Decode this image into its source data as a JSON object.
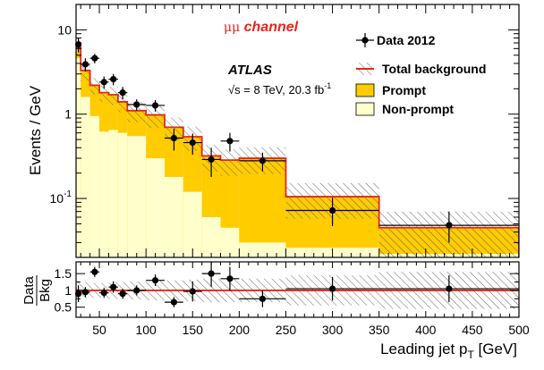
{
  "chart_data": {
    "type": "bar",
    "annotations": {
      "channel_symbol": "μμ",
      "channel_word": "channel",
      "experiment": "ATLAS",
      "energy": "√s = 8 TeV, 20.3 fb",
      "energy_exp": "-1"
    },
    "xlabel": "Leading jet p",
    "xlabel_sub": "T",
    "xlabel_unit": " [GeV]",
    "ylabel": "Events / GeV",
    "ratio_ylabel_top": "Data",
    "ratio_ylabel_bottom": "Bkg",
    "xlim": [
      25,
      500
    ],
    "ylim": [
      0.02,
      20
    ],
    "ratio_ylim": [
      0.2,
      1.85
    ],
    "log_y": true,
    "x_ticks": [
      "50",
      "100",
      "150",
      "200",
      "250",
      "300",
      "350",
      "400",
      "450",
      "500"
    ],
    "y_ticks": [
      "10",
      "1",
      "10"
    ],
    "y_tick_exp": [
      "",
      "",
      "-1"
    ],
    "ratio_ticks": [
      "1.5",
      "1",
      "0.5"
    ],
    "legend": {
      "placement": "top-right",
      "entries": [
        "Data 2012",
        "Total background",
        "Prompt",
        "Non-prompt"
      ]
    },
    "bin_edges": [
      25,
      30,
      40,
      50,
      60,
      70,
      80,
      100,
      120,
      140,
      160,
      180,
      200,
      250,
      350,
      500
    ],
    "series": [
      {
        "name": "Non-prompt",
        "values": [
          4.6,
          1.6,
          0.95,
          0.62,
          0.65,
          0.6,
          0.55,
          0.3,
          0.18,
          0.12,
          0.06,
          0.045,
          0.03,
          0.026,
          0.022
        ]
      },
      {
        "name": "Prompt",
        "values": [
          1.6,
          1.7,
          1.25,
          1.18,
          1.05,
          0.8,
          0.55,
          0.68,
          0.52,
          0.42,
          0.26,
          0.24,
          0.27,
          0.079,
          0.023
        ]
      },
      {
        "name": "Total background",
        "values": [
          6.2,
          3.3,
          2.2,
          1.8,
          1.7,
          1.4,
          1.1,
          0.98,
          0.7,
          0.54,
          0.32,
          0.285,
          0.3,
          0.105,
          0.045
        ]
      },
      {
        "name": "Data 2012",
        "x": [
          27.5,
          35,
          45,
          55,
          65,
          75,
          90,
          110,
          130,
          150,
          170,
          190,
          225,
          300,
          425
        ],
        "values": [
          6.7,
          3.9,
          4.6,
          2.4,
          2.6,
          1.8,
          1.3,
          1.27,
          0.52,
          0.46,
          0.29,
          0.48,
          0.28,
          0.072,
          0.048
        ],
        "err_low": [
          1.3,
          0.7,
          0.6,
          0.4,
          0.4,
          0.3,
          0.2,
          0.2,
          0.15,
          0.13,
          0.11,
          0.12,
          0.07,
          0.025,
          0.018
        ],
        "err_high": [
          1.3,
          0.7,
          0.6,
          0.4,
          0.4,
          0.3,
          0.2,
          0.2,
          0.15,
          0.13,
          0.11,
          0.12,
          0.07,
          0.03,
          0.022
        ]
      }
    ],
    "ratio": {
      "values": [
        0.9,
        0.95,
        1.55,
        0.93,
        1.1,
        0.9,
        1.0,
        1.3,
        0.65,
        0.97,
        1.5,
        1.35,
        0.75,
        1.05,
        1.05
      ],
      "err_low": [
        0.25,
        0.15,
        0.15,
        0.15,
        0.17,
        0.15,
        0.15,
        0.17,
        0.15,
        0.3,
        0.4,
        0.35,
        0.25,
        0.35,
        0.4
      ],
      "err_high": [
        0.25,
        0.15,
        0.15,
        0.15,
        0.17,
        0.15,
        0.15,
        0.17,
        0.15,
        0.3,
        0.4,
        0.35,
        0.25,
        0.35,
        0.4
      ],
      "band": [
        0.25,
        0.25,
        0.22,
        0.22,
        0.25,
        0.25,
        0.27,
        0.3,
        0.3,
        0.32,
        0.35,
        0.35,
        0.35,
        0.45,
        0.55
      ]
    },
    "background_uncertainty": [
      0.25,
      0.25,
      0.22,
      0.22,
      0.25,
      0.25,
      0.27,
      0.3,
      0.3,
      0.32,
      0.35,
      0.35,
      0.35,
      0.45,
      0.55
    ],
    "colors": {
      "prompt": "#ffcc00",
      "nonprompt": "#ffffcc",
      "total_line": "#e8251c",
      "data": "#000000",
      "channel_text": "#e8251c"
    }
  }
}
